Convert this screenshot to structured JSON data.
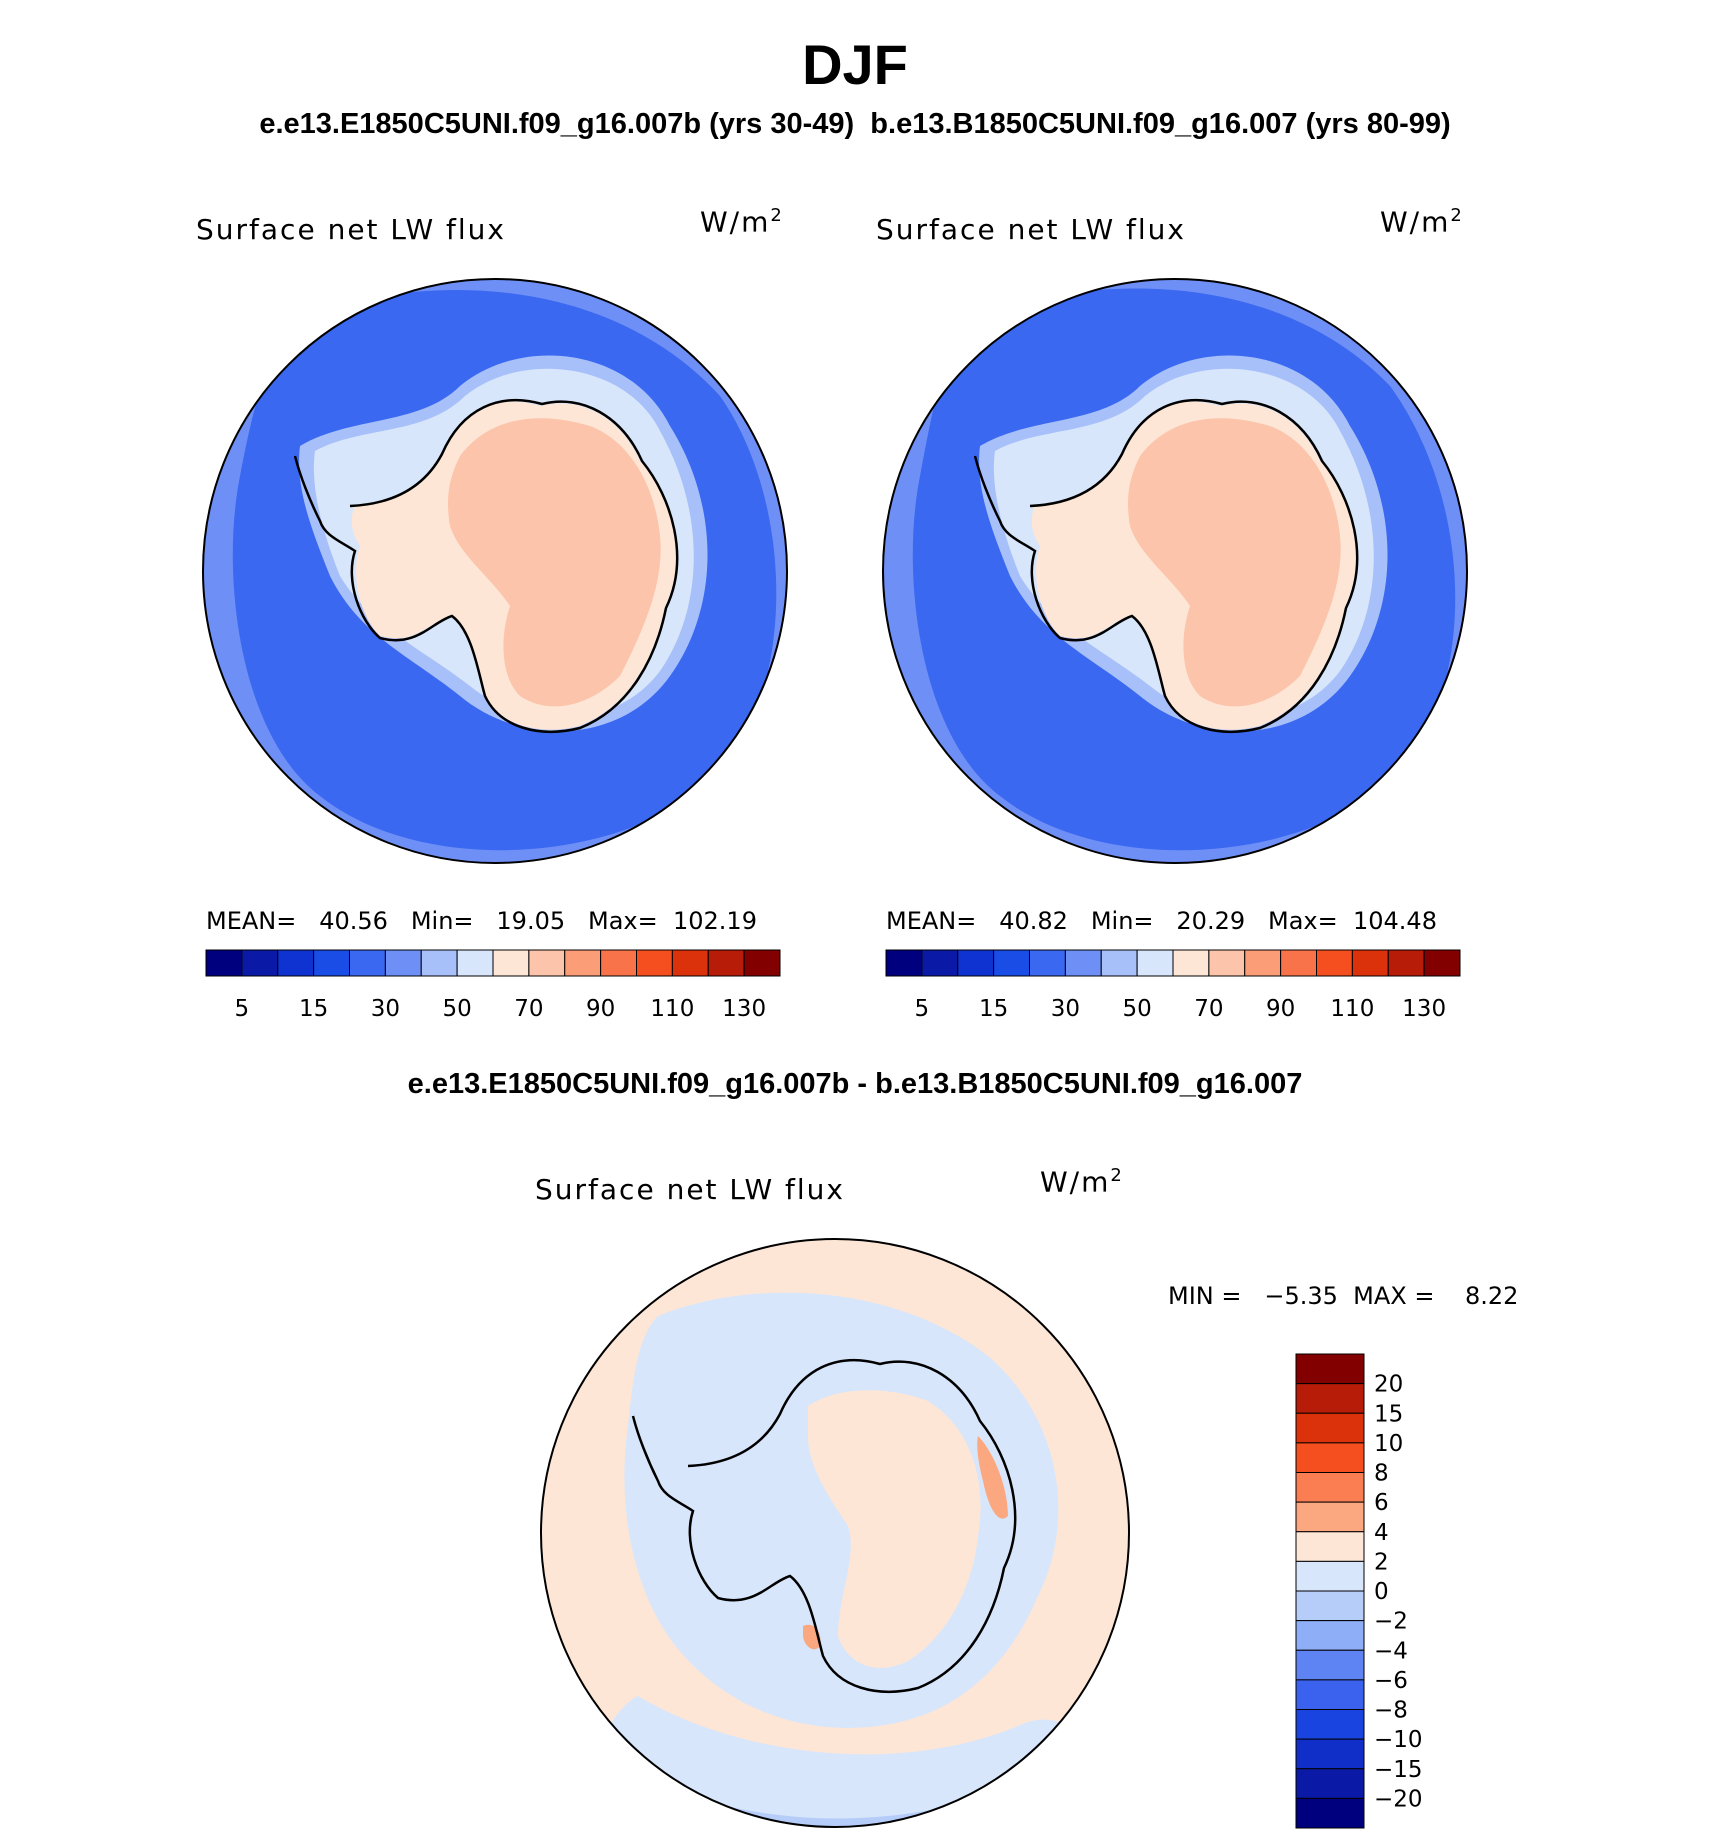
{
  "page": {
    "season": "DJF",
    "case_title": "e.e13.E1850C5UNI.f09_g16.007b (yrs 30-49)  b.e13.B1850C5UNI.f09_g16.007 (yrs 80-99)",
    "diff_title": "e.e13.E1850C5UNI.f09_g16.007b - b.e13.B1850C5UNI.f09_g16.007"
  },
  "panels": [
    {
      "field": "Surface net LW flux",
      "units_base": "W/m",
      "units_exp": "2",
      "stats_text": "MEAN=   40.56   Min=   19.05   Max=  102.19",
      "mean": 40.56,
      "min": 19.05,
      "max": 102.19
    },
    {
      "field": "Surface net LW flux",
      "units_base": "W/m",
      "units_exp": "2",
      "stats_text": "MEAN=   40.82   Min=   20.29   Max=  104.48",
      "mean": 40.82,
      "min": 20.29,
      "max": 104.48
    }
  ],
  "diff_panel": {
    "field": "Surface net LW flux",
    "units_base": "W/m",
    "units_exp": "2",
    "stats_text": "MIN =   −5.35  MAX =    8.22",
    "min": -5.35,
    "max": 8.22
  },
  "colorbar_main": {
    "colors": [
      "#00007f",
      "#0a1aa6",
      "#0f33d0",
      "#1a4de6",
      "#3a68f0",
      "#6e8ff6",
      "#a7c0fa",
      "#d8e6fb",
      "#fde6d6",
      "#fcc4aa",
      "#fb9e78",
      "#f9734a",
      "#f54e1f",
      "#db320c",
      "#b71c08",
      "#830000"
    ],
    "ticks": [
      "5",
      "15",
      "30",
      "50",
      "70",
      "90",
      "110",
      "130"
    ]
  },
  "colorbar_diff": {
    "colors": [
      "#830000",
      "#b71c08",
      "#db320c",
      "#f54e1f",
      "#fb7d52",
      "#fba77f",
      "#fde6d6",
      "#d8e6fb",
      "#b6cdfa",
      "#8eaef8",
      "#5e83f2",
      "#3a62ef",
      "#1a44e0",
      "#0f2fc8",
      "#0a1aa6",
      "#00007f"
    ],
    "ticks": [
      "20",
      "15",
      "10",
      "8",
      "6",
      "4",
      "2",
      "0",
      "−2",
      "−4",
      "−6",
      "−8",
      "−10",
      "−15",
      "−20"
    ]
  },
  "map_colors": {
    "ocean_deep": "#3a68f0",
    "ocean_outer": "#6e8ff6",
    "coast_1": "#a7c0fa",
    "coast_2": "#d8e6fb",
    "land_low": "#fde6d6",
    "land_high": "#fcc4aa",
    "diff_neg": "#d8e6fb",
    "diff_neg2": "#b6cdfa",
    "diff_pos": "#fde6d6",
    "diff_pos2": "#fba77f"
  }
}
